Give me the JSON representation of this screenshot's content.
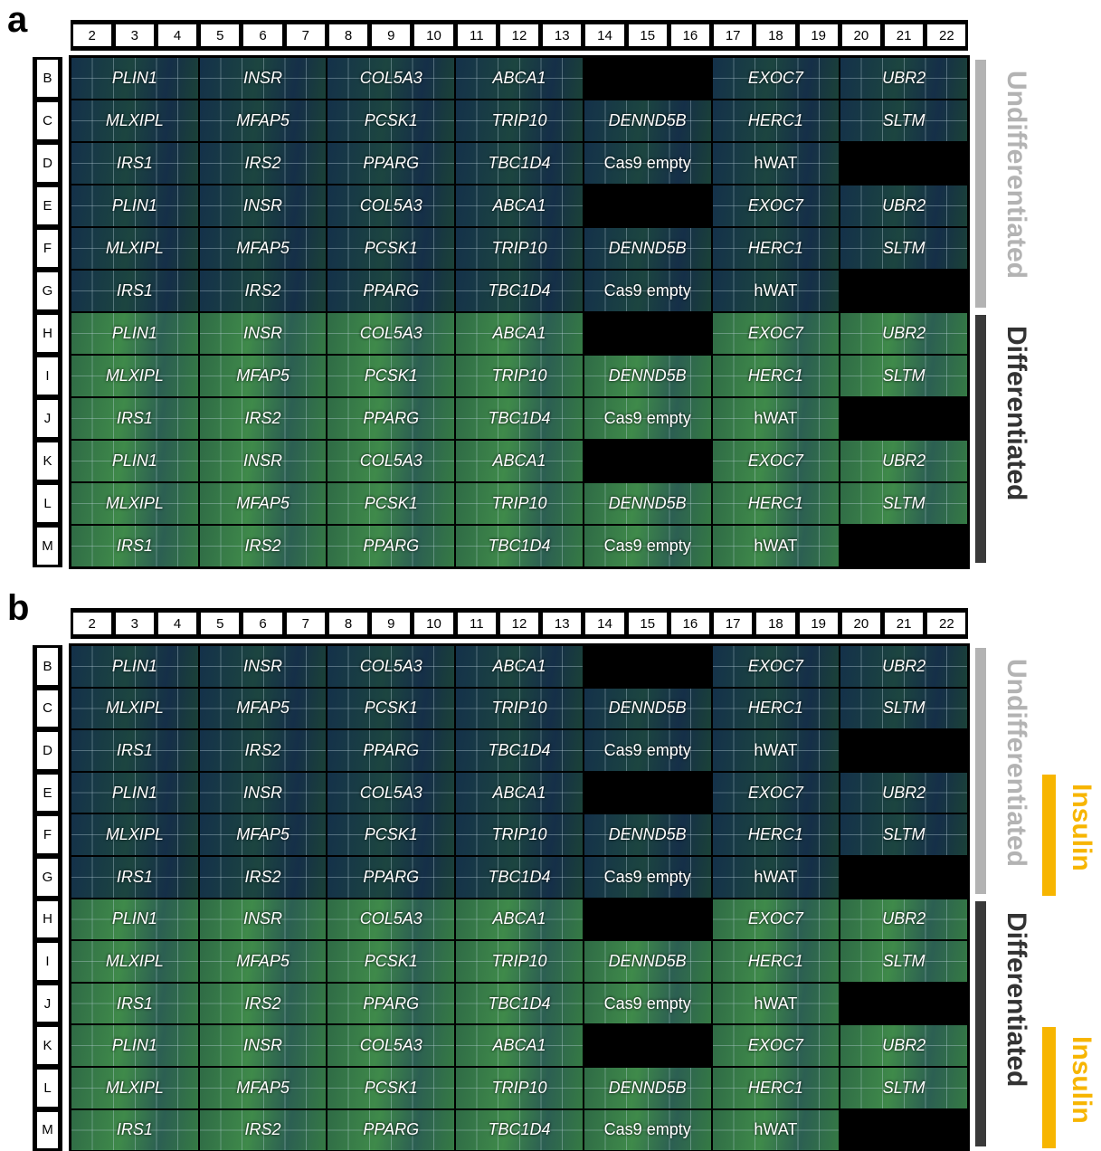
{
  "panels": [
    {
      "letter": "a",
      "columns": [
        2,
        3,
        4,
        5,
        6,
        7,
        8,
        9,
        10,
        11,
        12,
        13,
        14,
        15,
        16,
        17,
        18,
        19,
        20,
        21,
        22
      ],
      "rows": [
        "B",
        "C",
        "D",
        "E",
        "F",
        "G",
        "H",
        "I",
        "J",
        "K",
        "L",
        "M"
      ],
      "cells": [
        [
          "PLIN1",
          "INSR",
          "COL5A3",
          "ABCA1",
          null,
          "EXOC7",
          "UBR2"
        ],
        [
          "MLXIPL",
          "MFAP5",
          "PCSK1",
          "TRIP10",
          "DENND5B",
          "HERC1",
          "SLTM"
        ],
        [
          "IRS1",
          "IRS2",
          "PPARG",
          "TBC1D4",
          "Cas9 empty",
          "hWAT",
          null
        ],
        [
          "PLIN1",
          "INSR",
          "COL5A3",
          "ABCA1",
          null,
          "EXOC7",
          "UBR2"
        ],
        [
          "MLXIPL",
          "MFAP5",
          "PCSK1",
          "TRIP10",
          "DENND5B",
          "HERC1",
          "SLTM"
        ],
        [
          "IRS1",
          "IRS2",
          "PPARG",
          "TBC1D4",
          "Cas9 empty",
          "hWAT",
          null
        ],
        [
          "PLIN1",
          "INSR",
          "COL5A3",
          "ABCA1",
          null,
          "EXOC7",
          "UBR2"
        ],
        [
          "MLXIPL",
          "MFAP5",
          "PCSK1",
          "TRIP10",
          "DENND5B",
          "HERC1",
          "SLTM"
        ],
        [
          "IRS1",
          "IRS2",
          "PPARG",
          "TBC1D4",
          "Cas9 empty",
          "hWAT",
          null
        ],
        [
          "PLIN1",
          "INSR",
          "COL5A3",
          "ABCA1",
          null,
          "EXOC7",
          "UBR2"
        ],
        [
          "MLXIPL",
          "MFAP5",
          "PCSK1",
          "TRIP10",
          "DENND5B",
          "HERC1",
          "SLTM"
        ],
        [
          "IRS1",
          "IRS2",
          "PPARG",
          "TBC1D4",
          "Cas9 empty",
          "hWAT",
          null
        ]
      ],
      "groups": [
        "Undifferentiated",
        "Differentiated"
      ]
    },
    {
      "letter": "b",
      "columns": [
        2,
        3,
        4,
        5,
        6,
        7,
        8,
        9,
        10,
        11,
        12,
        13,
        14,
        15,
        16,
        17,
        18,
        19,
        20,
        21,
        22
      ],
      "rows": [
        "B",
        "C",
        "D",
        "E",
        "F",
        "G",
        "H",
        "I",
        "J",
        "K",
        "L",
        "M"
      ],
      "cells": [
        [
          "PLIN1",
          "INSR",
          "COL5A3",
          "ABCA1",
          null,
          "EXOC7",
          "UBR2"
        ],
        [
          "MLXIPL",
          "MFAP5",
          "PCSK1",
          "TRIP10",
          "DENND5B",
          "HERC1",
          "SLTM"
        ],
        [
          "IRS1",
          "IRS2",
          "PPARG",
          "TBC1D4",
          "Cas9 empty",
          "hWAT",
          null
        ],
        [
          "PLIN1",
          "INSR",
          "COL5A3",
          "ABCA1",
          null,
          "EXOC7",
          "UBR2"
        ],
        [
          "MLXIPL",
          "MFAP5",
          "PCSK1",
          "TRIP10",
          "DENND5B",
          "HERC1",
          "SLTM"
        ],
        [
          "IRS1",
          "IRS2",
          "PPARG",
          "TBC1D4",
          "Cas9 empty",
          "hWAT",
          null
        ],
        [
          "PLIN1",
          "INSR",
          "COL5A3",
          "ABCA1",
          null,
          "EXOC7",
          "UBR2"
        ],
        [
          "MLXIPL",
          "MFAP5",
          "PCSK1",
          "TRIP10",
          "DENND5B",
          "HERC1",
          "SLTM"
        ],
        [
          "IRS1",
          "IRS2",
          "PPARG",
          "TBC1D4",
          "Cas9 empty",
          "hWAT",
          null
        ],
        [
          "PLIN1",
          "INSR",
          "COL5A3",
          "ABCA1",
          null,
          "EXOC7",
          "UBR2"
        ],
        [
          "MLXIPL",
          "MFAP5",
          "PCSK1",
          "TRIP10",
          "DENND5B",
          "HERC1",
          "SLTM"
        ],
        [
          "IRS1",
          "IRS2",
          "PPARG",
          "TBC1D4",
          "Cas9 empty",
          "hWAT",
          null
        ]
      ],
      "groups": [
        "Undifferentiated",
        "Differentiated"
      ],
      "treatments": [
        "Insulin",
        "Insulin"
      ]
    }
  ]
}
